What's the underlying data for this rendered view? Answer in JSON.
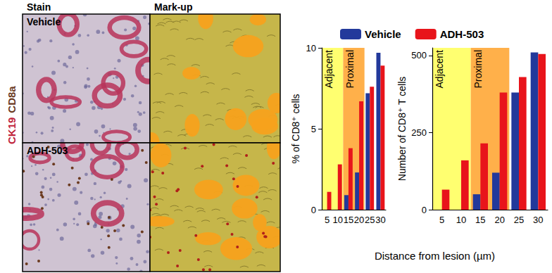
{
  "figure": {
    "image_panel": {
      "column_titles": [
        "Stain",
        "Mark-up"
      ],
      "row_labels": [
        "Vehicle",
        "ADH-503"
      ],
      "stain_labels": [
        {
          "text": "CK19",
          "color": "#c0243c"
        },
        {
          "text": "CD8a",
          "color": "#6b3a1f"
        }
      ]
    },
    "x_label": "Distance from lesion (µm)"
  },
  "chart_data": [
    {
      "type": "bar",
      "y_label": "% of CD8⁺ cells",
      "categories": [
        "5",
        "10",
        "15",
        "20",
        "25",
        "30"
      ],
      "series": [
        {
          "name": "Vehicle",
          "color": "#23399b",
          "values": [
            0,
            0,
            0.9,
            2.3,
            7.2,
            9.7
          ]
        },
        {
          "name": "ADH-503",
          "color": "#e8141b",
          "values": [
            1.1,
            2.8,
            3.8,
            6.7,
            7.6,
            8.9
          ]
        }
      ],
      "ylim": [
        0,
        10
      ],
      "yticks": [
        0,
        5,
        10
      ],
      "regions": [
        {
          "label": "Adjacent",
          "from": "5",
          "to": "10",
          "color": "#ffff70"
        },
        {
          "label": "Proximal",
          "from": "15",
          "to": "20",
          "color": "#ffb04a"
        }
      ],
      "legend": "top",
      "grid": false
    },
    {
      "type": "bar",
      "y_label": "Number of CD8⁺ T cells",
      "categories": [
        "5",
        "10",
        "15",
        "20",
        "25",
        "30"
      ],
      "series": [
        {
          "name": "Vehicle",
          "color": "#23399b",
          "values": [
            0,
            0,
            50,
            120,
            380,
            510
          ]
        },
        {
          "name": "ADH-503",
          "color": "#e8141b",
          "values": [
            65,
            160,
            215,
            380,
            430,
            505
          ]
        }
      ],
      "ylim": [
        0,
        525
      ],
      "yticks": [
        0,
        250,
        500
      ],
      "regions": [
        {
          "label": "Adjacent",
          "from": "5",
          "to": "10",
          "color": "#ffff70"
        },
        {
          "label": "Proximal",
          "from": "15",
          "to": "20",
          "color": "#ffb04a"
        }
      ],
      "grid": false
    }
  ]
}
